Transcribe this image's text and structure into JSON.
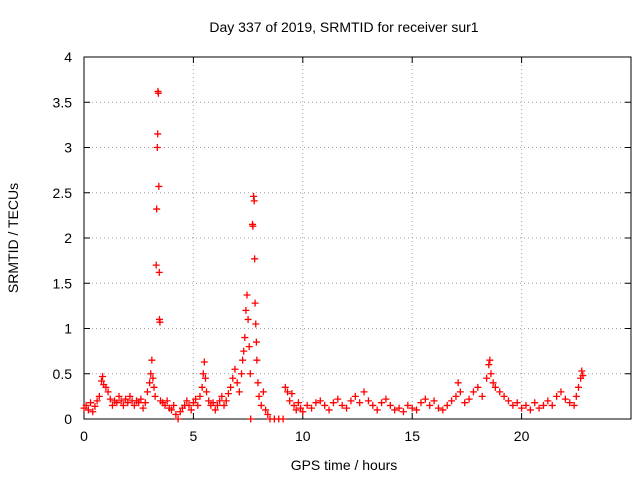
{
  "chart_data": {
    "type": "scatter",
    "title": "Day 337 of 2019, SRMTID for receiver sur1",
    "xlabel": "GPS time / hours",
    "ylabel": "SRMTID / TECUs",
    "xlim": [
      0,
      25
    ],
    "ylim": [
      0,
      4
    ],
    "xticks": [
      0,
      5,
      10,
      15,
      20
    ],
    "yticks": [
      0,
      0.5,
      1,
      1.5,
      2,
      2.5,
      3,
      3.5,
      4
    ],
    "xtick_labels": [
      "0",
      "5",
      "10",
      "15",
      "20"
    ],
    "ytick_labels": [
      "0",
      "0.5",
      "1",
      "1.5",
      "2",
      "2.5",
      "3",
      "3.5",
      "4"
    ],
    "grid": true,
    "legend": "none",
    "marker": "+",
    "series": [
      {
        "name": "sur1",
        "color": "#ff0000",
        "points": [
          [
            0.0,
            0.12
          ],
          [
            0.1,
            0.15
          ],
          [
            0.2,
            0.1
          ],
          [
            0.3,
            0.18
          ],
          [
            0.4,
            0.08
          ],
          [
            0.5,
            0.14
          ],
          [
            0.6,
            0.2
          ],
          [
            0.7,
            0.25
          ],
          [
            0.8,
            0.42
          ],
          [
            0.85,
            0.47
          ],
          [
            0.9,
            0.38
          ],
          [
            1.0,
            0.35
          ],
          [
            1.1,
            0.3
          ],
          [
            1.2,
            0.22
          ],
          [
            1.3,
            0.15
          ],
          [
            1.4,
            0.2
          ],
          [
            1.5,
            0.18
          ],
          [
            1.6,
            0.25
          ],
          [
            1.7,
            0.2
          ],
          [
            1.8,
            0.15
          ],
          [
            1.9,
            0.22
          ],
          [
            2.0,
            0.18
          ],
          [
            2.1,
            0.25
          ],
          [
            2.2,
            0.2
          ],
          [
            2.3,
            0.15
          ],
          [
            2.4,
            0.2
          ],
          [
            2.5,
            0.18
          ],
          [
            2.6,
            0.22
          ],
          [
            2.7,
            0.12
          ],
          [
            2.8,
            0.18
          ],
          [
            2.9,
            0.3
          ],
          [
            3.0,
            0.4
          ],
          [
            3.05,
            0.5
          ],
          [
            3.1,
            0.65
          ],
          [
            3.15,
            0.45
          ],
          [
            3.2,
            0.35
          ],
          [
            3.25,
            0.25
          ],
          [
            3.3,
            1.7
          ],
          [
            3.32,
            2.32
          ],
          [
            3.35,
            3.0
          ],
          [
            3.37,
            3.15
          ],
          [
            3.38,
            3.62
          ],
          [
            3.4,
            3.6
          ],
          [
            3.42,
            2.57
          ],
          [
            3.44,
            1.62
          ],
          [
            3.45,
            1.1
          ],
          [
            3.47,
            1.07
          ],
          [
            3.5,
            0.2
          ],
          [
            3.6,
            0.18
          ],
          [
            3.7,
            0.15
          ],
          [
            3.8,
            0.2
          ],
          [
            3.9,
            0.12
          ],
          [
            4.0,
            0.1
          ],
          [
            4.1,
            0.15
          ],
          [
            4.2,
            0.05
          ],
          [
            4.3,
            0.0
          ],
          [
            4.4,
            0.08
          ],
          [
            4.5,
            0.12
          ],
          [
            4.6,
            0.15
          ],
          [
            4.7,
            0.2
          ],
          [
            4.8,
            0.15
          ],
          [
            4.9,
            0.1
          ],
          [
            5.0,
            0.18
          ],
          [
            5.1,
            0.22
          ],
          [
            5.2,
            0.15
          ],
          [
            5.3,
            0.25
          ],
          [
            5.4,
            0.35
          ],
          [
            5.45,
            0.5
          ],
          [
            5.5,
            0.63
          ],
          [
            5.55,
            0.45
          ],
          [
            5.6,
            0.3
          ],
          [
            5.7,
            0.2
          ],
          [
            5.8,
            0.15
          ],
          [
            5.9,
            0.18
          ],
          [
            6.0,
            0.1
          ],
          [
            6.1,
            0.15
          ],
          [
            6.2,
            0.2
          ],
          [
            6.3,
            0.25
          ],
          [
            6.4,
            0.15
          ],
          [
            6.5,
            0.2
          ],
          [
            6.6,
            0.28
          ],
          [
            6.7,
            0.35
          ],
          [
            6.8,
            0.45
          ],
          [
            6.9,
            0.55
          ],
          [
            7.0,
            0.4
          ],
          [
            7.1,
            0.3
          ],
          [
            7.2,
            0.5
          ],
          [
            7.25,
            0.65
          ],
          [
            7.3,
            0.75
          ],
          [
            7.35,
            0.9
          ],
          [
            7.4,
            1.2
          ],
          [
            7.45,
            1.37
          ],
          [
            7.5,
            1.1
          ],
          [
            7.55,
            0.8
          ],
          [
            7.6,
            0.5
          ],
          [
            7.62,
            0.0
          ],
          [
            7.7,
            2.15
          ],
          [
            7.72,
            2.13
          ],
          [
            7.75,
            2.46
          ],
          [
            7.78,
            2.41
          ],
          [
            7.8,
            1.77
          ],
          [
            7.82,
            1.28
          ],
          [
            7.85,
            1.05
          ],
          [
            7.88,
            0.85
          ],
          [
            7.9,
            0.65
          ],
          [
            7.95,
            0.4
          ],
          [
            8.0,
            0.25
          ],
          [
            8.1,
            0.15
          ],
          [
            8.2,
            0.3
          ],
          [
            8.3,
            0.1
          ],
          [
            8.4,
            0.05
          ],
          [
            8.5,
            0.0
          ],
          [
            8.7,
            0.0
          ],
          [
            8.9,
            0.0
          ],
          [
            9.1,
            0.0
          ],
          [
            9.2,
            0.35
          ],
          [
            9.3,
            0.3
          ],
          [
            9.4,
            0.2
          ],
          [
            9.5,
            0.28
          ],
          [
            9.6,
            0.15
          ],
          [
            9.7,
            0.1
          ],
          [
            9.8,
            0.18
          ],
          [
            9.9,
            0.12
          ],
          [
            10.0,
            0.08
          ],
          [
            10.2,
            0.15
          ],
          [
            10.4,
            0.12
          ],
          [
            10.6,
            0.18
          ],
          [
            10.8,
            0.2
          ],
          [
            11.0,
            0.15
          ],
          [
            11.2,
            0.1
          ],
          [
            11.4,
            0.18
          ],
          [
            11.6,
            0.22
          ],
          [
            11.8,
            0.15
          ],
          [
            12.0,
            0.12
          ],
          [
            12.2,
            0.2
          ],
          [
            12.4,
            0.25
          ],
          [
            12.6,
            0.18
          ],
          [
            12.8,
            0.3
          ],
          [
            13.0,
            0.2
          ],
          [
            13.2,
            0.15
          ],
          [
            13.4,
            0.1
          ],
          [
            13.6,
            0.18
          ],
          [
            13.8,
            0.22
          ],
          [
            14.0,
            0.15
          ],
          [
            14.2,
            0.1
          ],
          [
            14.4,
            0.12
          ],
          [
            14.6,
            0.08
          ],
          [
            14.8,
            0.15
          ],
          [
            15.0,
            0.12
          ],
          [
            15.2,
            0.1
          ],
          [
            15.4,
            0.18
          ],
          [
            15.6,
            0.22
          ],
          [
            15.8,
            0.15
          ],
          [
            16.0,
            0.2
          ],
          [
            16.2,
            0.12
          ],
          [
            16.4,
            0.1
          ],
          [
            16.6,
            0.15
          ],
          [
            16.8,
            0.2
          ],
          [
            17.0,
            0.25
          ],
          [
            17.1,
            0.4
          ],
          [
            17.2,
            0.3
          ],
          [
            17.4,
            0.18
          ],
          [
            17.6,
            0.22
          ],
          [
            17.8,
            0.3
          ],
          [
            18.0,
            0.35
          ],
          [
            18.2,
            0.25
          ],
          [
            18.4,
            0.45
          ],
          [
            18.5,
            0.6
          ],
          [
            18.55,
            0.65
          ],
          [
            18.6,
            0.5
          ],
          [
            18.7,
            0.4
          ],
          [
            18.8,
            0.35
          ],
          [
            19.0,
            0.3
          ],
          [
            19.2,
            0.25
          ],
          [
            19.4,
            0.2
          ],
          [
            19.6,
            0.15
          ],
          [
            19.8,
            0.18
          ],
          [
            20.0,
            0.12
          ],
          [
            20.2,
            0.15
          ],
          [
            20.4,
            0.1
          ],
          [
            20.6,
            0.18
          ],
          [
            20.8,
            0.12
          ],
          [
            21.0,
            0.15
          ],
          [
            21.2,
            0.2
          ],
          [
            21.4,
            0.15
          ],
          [
            21.6,
            0.25
          ],
          [
            21.8,
            0.3
          ],
          [
            22.0,
            0.22
          ],
          [
            22.2,
            0.18
          ],
          [
            22.4,
            0.15
          ],
          [
            22.5,
            0.25
          ],
          [
            22.6,
            0.35
          ],
          [
            22.7,
            0.45
          ],
          [
            22.75,
            0.53
          ],
          [
            22.8,
            0.48
          ]
        ]
      }
    ]
  }
}
